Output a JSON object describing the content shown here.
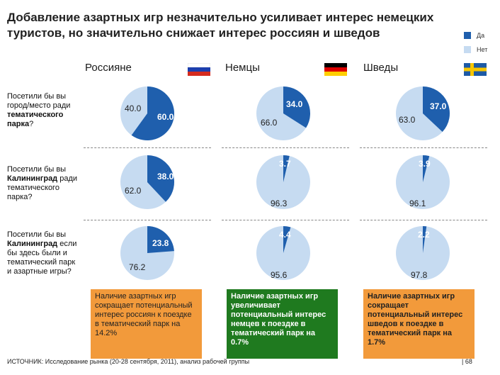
{
  "header": {
    "title": "Добавление азартных игр незначительно усиливает интерес немецких туристов, но значительно снижает интерес россиян и шведов"
  },
  "legend": [
    {
      "label": "Да",
      "color": "#1f5fad"
    },
    {
      "label": "Нет",
      "color": "#c6dbf1"
    }
  ],
  "columns": [
    {
      "name": "Россияне",
      "flag": "russia-flag"
    },
    {
      "name": "Немцы",
      "flag": "germany-flag"
    },
    {
      "name": "Шведы",
      "flag": "sweden-flag"
    }
  ],
  "rows": [
    {
      "q_pre": "Посетили бы вы город/место ради ",
      "q_bold": "тематического парка",
      "q_post": "?"
    },
    {
      "q_pre": "Посетили бы вы ",
      "q_bold": "Калининград",
      "q_post": " ради тематического парка?"
    },
    {
      "q_pre": "Посетили бы вы ",
      "q_bold": "Калининград",
      "q_post": " если бы здесь были и тематический парк и азартные игры?"
    }
  ],
  "chart_data": {
    "type": "pie",
    "title": "Добавление азартных игр незначительно усиливает интерес немецких туристов, но значительно снижает интерес россиян и шведов",
    "series_labels": [
      "Да",
      "Нет"
    ],
    "colors": {
      "yes": "#1f5fad",
      "no": "#c6dbf1"
    },
    "pies": [
      {
        "column": "Россияне",
        "row": 0,
        "yes": 60.0,
        "no": 40.0,
        "yes_label": "60.0",
        "no_label": "40.0"
      },
      {
        "column": "Немцы",
        "row": 0,
        "yes": 34.0,
        "no": 66.0,
        "yes_label": "34.0",
        "no_label": "66.0"
      },
      {
        "column": "Шведы",
        "row": 0,
        "yes": 37.0,
        "no": 63.0,
        "yes_label": "37.0",
        "no_label": "63.0"
      },
      {
        "column": "Россияне",
        "row": 1,
        "yes": 38.0,
        "no": 62.0,
        "yes_label": "38.0",
        "no_label": "62.0"
      },
      {
        "column": "Немцы",
        "row": 1,
        "yes": 3.7,
        "no": 96.3,
        "yes_label": "3.7",
        "no_label": "96.3"
      },
      {
        "column": "Шведы",
        "row": 1,
        "yes": 3.9,
        "no": 96.1,
        "yes_label": "3.9",
        "no_label": "96.1"
      },
      {
        "column": "Россияне",
        "row": 2,
        "yes": 23.8,
        "no": 76.2,
        "yes_label": "23.8",
        "no_label": "76.2"
      },
      {
        "column": "Немцы",
        "row": 2,
        "yes": 4.4,
        "no": 95.6,
        "yes_label": "4.4",
        "no_label": "95.6"
      },
      {
        "column": "Шведы",
        "row": 2,
        "yes": 2.2,
        "no": 97.8,
        "yes_label": "2.2",
        "no_label": "97.8"
      }
    ]
  },
  "conclusions": [
    {
      "text": "Наличие азартных игр сокращает потенциальный интерес россиян к поездке в тематический парк на 14.2%",
      "color": "#f29a3b"
    },
    {
      "text": "Наличие азартных игр увеличивает потенциальный интерес немцев к поездке в тематический парк на 0.7%",
      "color": "#1f7a1f"
    },
    {
      "text": "Наличие азартных игр сокращает потенциальный интерес шведов к поездке в тематический парк на 1.7%",
      "color": "#f29a3b"
    }
  ],
  "footer": {
    "source": "ИСТОЧНИК: Исследование рынка (20-28 сентября, 2011), анализ рабочей группы",
    "page": "| 68"
  }
}
